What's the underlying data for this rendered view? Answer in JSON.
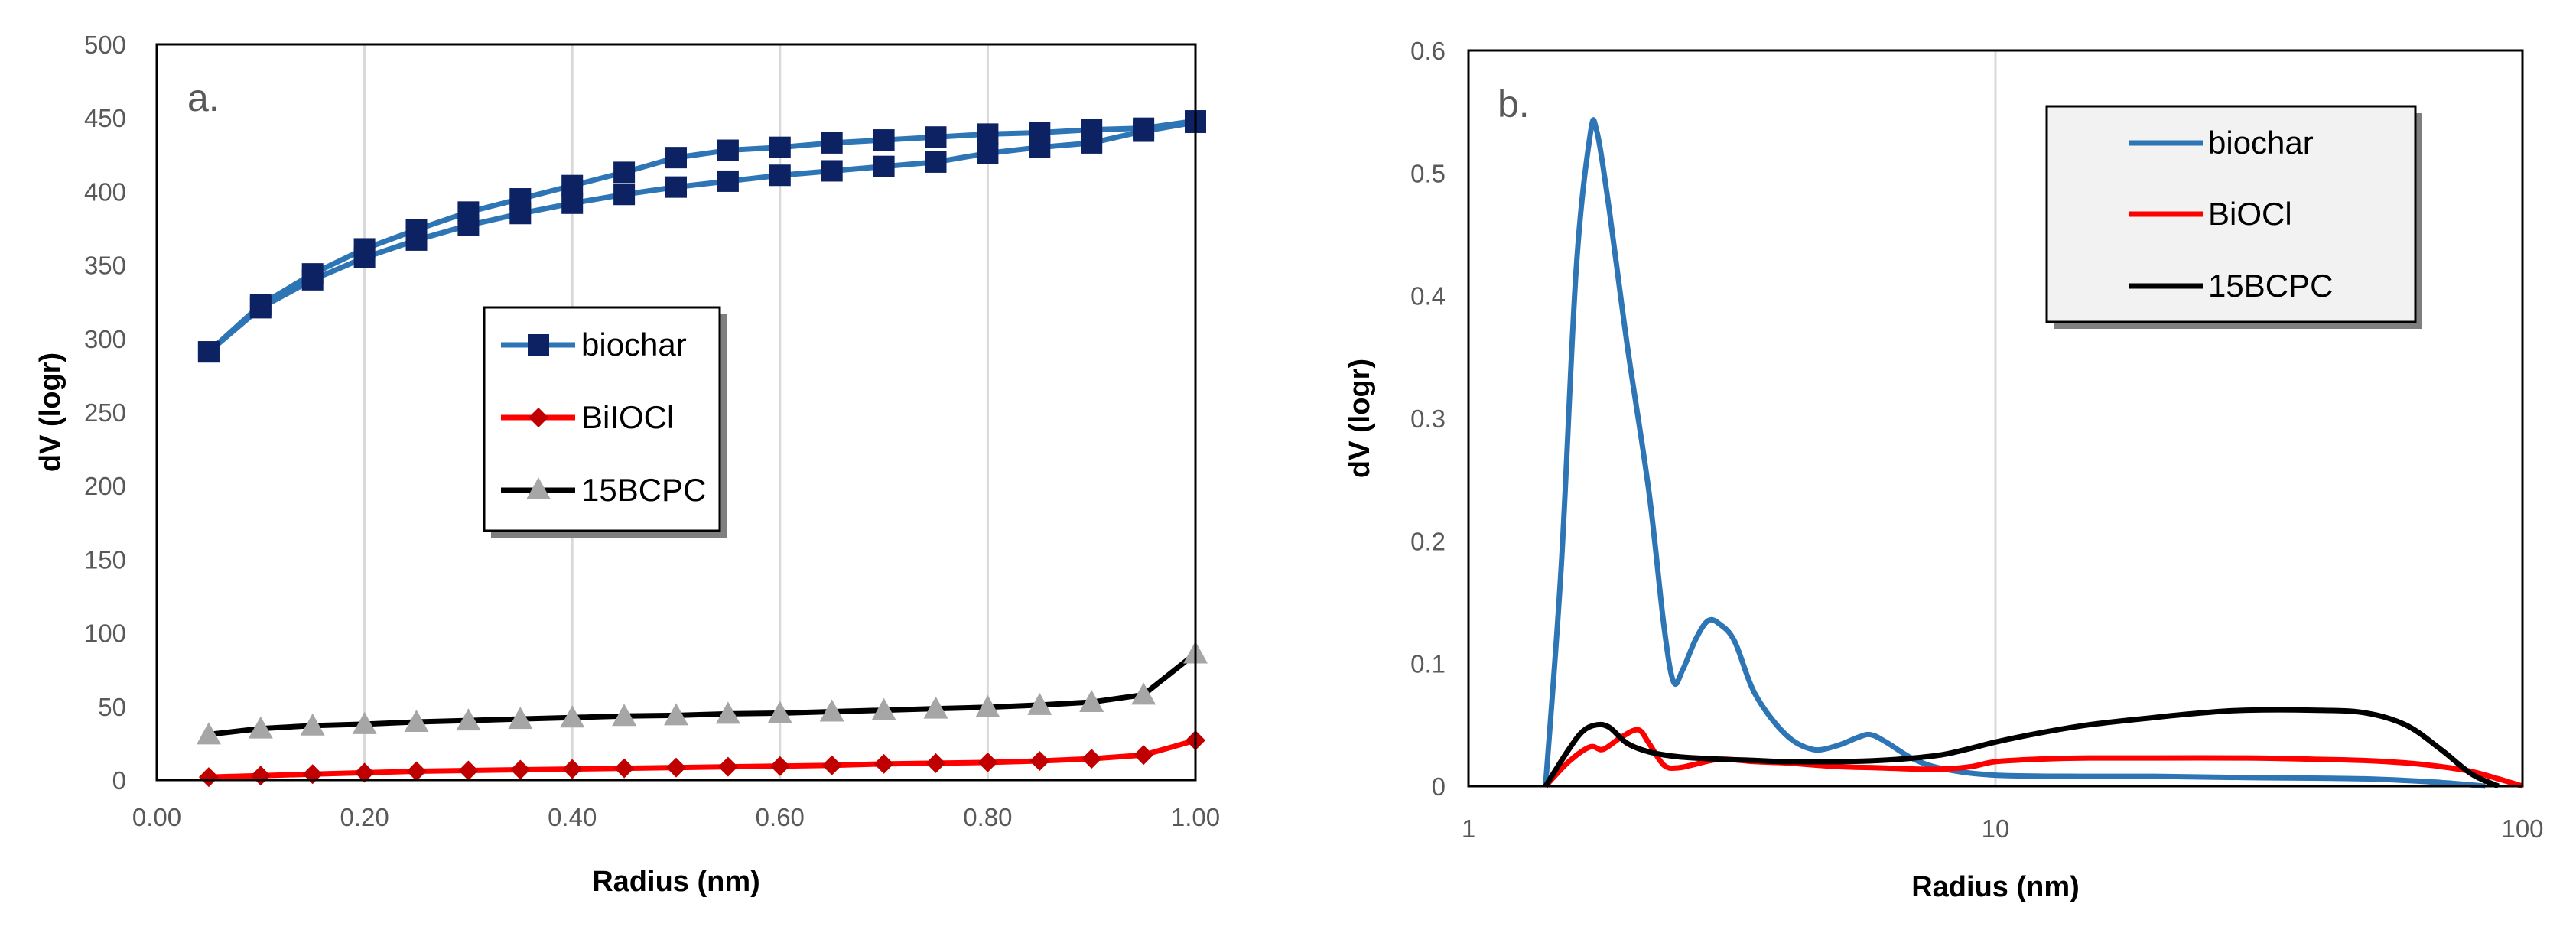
{
  "chart_data": [
    {
      "id": "a",
      "type": "line",
      "panel_label": "a.",
      "xlabel": "Radius (nm)",
      "ylabel": "dV (logr)",
      "xlim": [
        0,
        1
      ],
      "ylim": [
        0,
        500
      ],
      "x_ticks": [
        "0.00",
        "0.20",
        "0.40",
        "0.60",
        "0.80",
        "1.00"
      ],
      "y_ticks": [
        "0",
        "50",
        "100",
        "150",
        "200",
        "250",
        "300",
        "350",
        "400",
        "450",
        "500"
      ],
      "gridlines": "vertical",
      "legend_position": "center",
      "series": [
        {
          "name": "biochar",
          "color": "#2e75b6",
          "marker": "square",
          "marker_color": "#0d2263",
          "branches": [
            {
              "x": [
                0.05,
                0.1,
                0.15,
                0.2,
                0.25,
                0.3,
                0.35,
                0.4,
                0.45,
                0.5,
                0.55,
                0.6,
                0.65,
                0.7,
                0.75,
                0.8,
                0.85,
                0.9,
                0.95,
                1.0
              ],
              "y": [
                291,
                323,
                344,
                361,
                374,
                386,
                395,
                404,
                413,
                423,
                428,
                430,
                433,
                435,
                437,
                439,
                440,
                442,
                443,
                448
              ]
            },
            {
              "x": [
                0.05,
                0.1,
                0.15,
                0.2,
                0.25,
                0.3,
                0.35,
                0.4,
                0.45,
                0.5,
                0.55,
                0.6,
                0.65,
                0.7,
                0.75,
                0.8,
                0.85,
                0.9,
                0.95,
                1.0
              ],
              "y": [
                291,
                321,
                340,
                355,
                367,
                377,
                385,
                392,
                398,
                403,
                407,
                411,
                414,
                417,
                420,
                426,
                430,
                433,
                441,
                447
              ]
            }
          ]
        },
        {
          "name": "BiIOCl",
          "color": "#ff0000",
          "marker": "diamond",
          "marker_color": "#c00000",
          "branches": [
            {
              "x": [
                0.05,
                0.1,
                0.15,
                0.2,
                0.25,
                0.3,
                0.35,
                0.4,
                0.45,
                0.5,
                0.55,
                0.6,
                0.65,
                0.7,
                0.75,
                0.8,
                0.85,
                0.9,
                0.95,
                1.0
              ],
              "y": [
                2,
                3,
                4,
                5,
                6,
                6.5,
                7,
                7.5,
                8,
                8.5,
                9,
                9.5,
                10,
                11,
                11.5,
                12,
                13,
                14.5,
                17,
                27
              ]
            }
          ]
        },
        {
          "name": "15BCPC",
          "color": "#000000",
          "marker": "triangle",
          "marker_color": "#a6a6a6",
          "branches": [
            {
              "x": [
                0.05,
                0.1,
                0.15,
                0.2,
                0.25,
                0.3,
                0.35,
                0.4,
                0.45,
                0.5,
                0.55,
                0.6,
                0.65,
                0.7,
                0.75,
                0.8,
                0.85,
                0.9,
                0.95,
                1.0
              ],
              "y": [
                31,
                35,
                37,
                38,
                39.5,
                40.5,
                41.5,
                42.5,
                43.5,
                44,
                45,
                45.5,
                46.5,
                47.5,
                48.5,
                49.5,
                51,
                53,
                58,
                86
              ]
            }
          ]
        }
      ]
    },
    {
      "id": "b",
      "type": "line",
      "panel_label": "b.",
      "xlabel": "Radius (nm)",
      "ylabel": "dV (logr)",
      "xscale": "log",
      "xlim": [
        1,
        100
      ],
      "ylim": [
        0,
        0.6
      ],
      "x_ticks": [
        "1",
        "10",
        "100"
      ],
      "y_ticks": [
        "0",
        "0.1",
        "0.2",
        "0.3",
        "0.4",
        "0.5",
        "0.6"
      ],
      "gridlines": "vertical",
      "legend_position": "top-right",
      "series": [
        {
          "name": "biochar",
          "color": "#2e75b6",
          "x": [
            1.4,
            1.5,
            1.6,
            1.7,
            1.75,
            1.85,
            2.0,
            2.2,
            2.35,
            2.45,
            2.55,
            2.7,
            2.85,
            3.0,
            3.2,
            3.5,
            4.0,
            4.5,
            5.0,
            5.5,
            5.8,
            6.2,
            7.0,
            8.0,
            10,
            15,
            20,
            30,
            50,
            70,
            85
          ],
          "y": [
            0.0,
            0.18,
            0.42,
            0.53,
            0.535,
            0.47,
            0.36,
            0.24,
            0.13,
            0.085,
            0.095,
            0.12,
            0.135,
            0.132,
            0.118,
            0.075,
            0.042,
            0.03,
            0.033,
            0.04,
            0.042,
            0.036,
            0.022,
            0.014,
            0.009,
            0.008,
            0.008,
            0.007,
            0.006,
            0.003,
            0.0
          ]
        },
        {
          "name": "BiOCl",
          "color": "#ff0000",
          "x": [
            1.4,
            1.55,
            1.7,
            1.8,
            1.95,
            2.1,
            2.2,
            2.35,
            2.5,
            2.7,
            3.0,
            3.5,
            4.0,
            5.0,
            6.0,
            7.0,
            8.0,
            9.0,
            10,
            12,
            15,
            20,
            30,
            40,
            50,
            60,
            70,
            80,
            90,
            100
          ],
          "y": [
            0.0,
            0.02,
            0.032,
            0.03,
            0.04,
            0.046,
            0.035,
            0.017,
            0.015,
            0.018,
            0.022,
            0.02,
            0.019,
            0.016,
            0.015,
            0.014,
            0.014,
            0.016,
            0.02,
            0.022,
            0.023,
            0.023,
            0.023,
            0.022,
            0.021,
            0.019,
            0.016,
            0.012,
            0.006,
            0.0
          ]
        },
        {
          "name": "15BCPC",
          "color": "#000000",
          "x": [
            1.4,
            1.55,
            1.65,
            1.75,
            1.85,
            2.0,
            2.2,
            2.5,
            3.0,
            3.5,
            4.0,
            5.0,
            6.0,
            7.0,
            8.0,
            9.0,
            10,
            12,
            15,
            20,
            25,
            30,
            40,
            50,
            60,
            70,
            80,
            90
          ],
          "y": [
            0.0,
            0.03,
            0.045,
            0.05,
            0.048,
            0.035,
            0.028,
            0.024,
            0.022,
            0.021,
            0.02,
            0.02,
            0.021,
            0.023,
            0.026,
            0.031,
            0.036,
            0.043,
            0.05,
            0.056,
            0.06,
            0.062,
            0.062,
            0.06,
            0.05,
            0.03,
            0.01,
            0.0
          ]
        }
      ]
    }
  ]
}
